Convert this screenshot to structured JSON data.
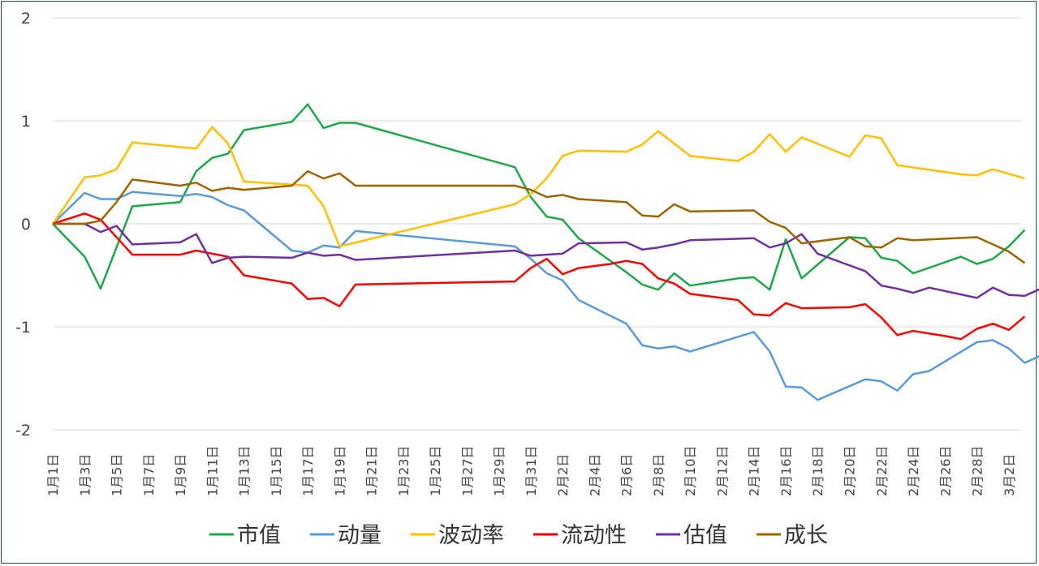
{
  "chart_data": {
    "type": "line",
    "ylim": [
      -2,
      2
    ],
    "yticks": [
      "2",
      "1",
      "0",
      "-1",
      "-2"
    ],
    "grid": true,
    "legend_position": "bottom",
    "x": [
      "1月1日",
      "1月2日",
      "1月3日",
      "1月4日",
      "1月5日",
      "1月6日",
      "1月7日",
      "1月8日",
      "1月9日",
      "1月10日",
      "1月11日",
      "1月12日",
      "1月13日",
      "1月14日",
      "1月15日",
      "1月16日",
      "1月17日",
      "1月18日",
      "1月19日",
      "1月20日",
      "1月21日",
      "1月22日",
      "1月23日",
      "1月24日",
      "1月25日",
      "1月26日",
      "1月27日",
      "1月28日",
      "1月29日",
      "1月30日",
      "1月31日",
      "2月1日",
      "2月2日",
      "2月3日",
      "2月4日",
      "2月5日",
      "2月6日",
      "2月7日",
      "2月8日",
      "2月9日",
      "2月10日",
      "2月11日",
      "2月12日",
      "2月13日",
      "2月14日",
      "2月15日",
      "2月16日",
      "2月17日",
      "2月18日",
      "2月19日",
      "2月20日",
      "2月21日",
      "2月22日",
      "2月23日",
      "2月24日",
      "2月25日",
      "2月26日",
      "2月27日",
      "2月28日",
      "3月1日",
      "3月2日",
      "3月3日"
    ],
    "x_tick_labels": [
      "1月1日",
      "1月3日",
      "1月5日",
      "1月7日",
      "1月9日",
      "1月11日",
      "1月13日",
      "1月15日",
      "1月17日",
      "1月19日",
      "1月21日",
      "1月23日",
      "1月25日",
      "1月27日",
      "1月29日",
      "1月31日",
      "2月2日",
      "2月4日",
      "2月6日",
      "2月8日",
      "2月10日",
      "2月12日",
      "2月14日",
      "2月16日",
      "2月18日",
      "2月20日",
      "2月22日",
      "2月24日",
      "2月26日",
      "2月28日",
      "3月2日"
    ],
    "series": [
      {
        "name": "市值",
        "color": "#1fa64a",
        "points": [
          [
            "1月1日",
            0.0
          ],
          [
            "1月3日",
            -0.32
          ],
          [
            "1月4日",
            -0.63
          ],
          [
            "1月6日",
            0.17
          ],
          [
            "1月9日",
            0.21
          ],
          [
            "1月10日",
            0.51
          ],
          [
            "1月11日",
            0.64
          ],
          [
            "1月12日",
            0.68
          ],
          [
            "1月13日",
            0.91
          ],
          [
            "1月16日",
            0.99
          ],
          [
            "1月17日",
            1.16
          ],
          [
            "1月18日",
            0.93
          ],
          [
            "1月19日",
            0.98
          ],
          [
            "1月20日",
            0.98
          ],
          [
            "1月30日",
            0.55
          ],
          [
            "1月31日",
            0.26
          ],
          [
            "2月1日",
            0.07
          ],
          [
            "2月2日",
            0.04
          ],
          [
            "2月3日",
            -0.14
          ],
          [
            "2月6日",
            -0.47
          ],
          [
            "2月7日",
            -0.59
          ],
          [
            "2月8日",
            -0.64
          ],
          [
            "2月9日",
            -0.48
          ],
          [
            "2月10日",
            -0.6
          ],
          [
            "2月13日",
            -0.53
          ],
          [
            "2月14日",
            -0.52
          ],
          [
            "2月15日",
            -0.64
          ],
          [
            "2月16日",
            -0.15
          ],
          [
            "2月17日",
            -0.53
          ],
          [
            "2月20日",
            -0.13
          ],
          [
            "2月21日",
            -0.14
          ],
          [
            "2月22日",
            -0.33
          ],
          [
            "2月23日",
            -0.36
          ],
          [
            "2月24日",
            -0.48
          ],
          [
            "2月27日",
            -0.32
          ],
          [
            "2月28日",
            -0.39
          ],
          [
            "3月1日",
            -0.34
          ],
          [
            "3月2日",
            -0.22
          ],
          [
            "3月3日",
            -0.06
          ]
        ]
      },
      {
        "name": "动量",
        "color": "#5b9bd5",
        "points": [
          [
            "1月1日",
            0.0
          ],
          [
            "1月3日",
            0.3
          ],
          [
            "1月4日",
            0.24
          ],
          [
            "1月5日",
            0.24
          ],
          [
            "1月6日",
            0.31
          ],
          [
            "1月9日",
            0.27
          ],
          [
            "1月10日",
            0.29
          ],
          [
            "1月11日",
            0.26
          ],
          [
            "1月12日",
            0.18
          ],
          [
            "1月13日",
            0.13
          ],
          [
            "1月16日",
            -0.26
          ],
          [
            "1月17日",
            -0.28
          ],
          [
            "1月18日",
            -0.21
          ],
          [
            "1月19日",
            -0.23
          ],
          [
            "1月20日",
            -0.07
          ],
          [
            "1月30日",
            -0.22
          ],
          [
            "1月31日",
            -0.34
          ],
          [
            "2月1日",
            -0.48
          ],
          [
            "2月2日",
            -0.55
          ],
          [
            "2月3日",
            -0.74
          ],
          [
            "2月6日",
            -0.97
          ],
          [
            "2月7日",
            -1.18
          ],
          [
            "2月8日",
            -1.21
          ],
          [
            "2月9日",
            -1.19
          ],
          [
            "2月10日",
            -1.24
          ],
          [
            "2月14日",
            -1.05
          ],
          [
            "2月15日",
            -1.24
          ],
          [
            "2月16日",
            -1.58
          ],
          [
            "2月17日",
            -1.59
          ],
          [
            "2月18日",
            -1.71
          ],
          [
            "2月21日",
            -1.51
          ],
          [
            "2月22日",
            -1.53
          ],
          [
            "2月23日",
            -1.62
          ],
          [
            "2月24日",
            -1.46
          ],
          [
            "2月25日",
            -1.43
          ],
          [
            "2月28日",
            -1.15
          ],
          [
            "3月1日",
            -1.13
          ],
          [
            "3月2日",
            -1.21
          ],
          [
            "3月3日",
            -1.35
          ],
          [
            "3月4日",
            -1.28
          ]
        ]
      },
      {
        "name": "波动率",
        "color": "#ffc000",
        "points": [
          [
            "1月1日",
            0.0
          ],
          [
            "1月3日",
            0.45
          ],
          [
            "1月4日",
            0.47
          ],
          [
            "1月5日",
            0.53
          ],
          [
            "1月6日",
            0.79
          ],
          [
            "1月10日",
            0.73
          ],
          [
            "1月11日",
            0.94
          ],
          [
            "1月12日",
            0.78
          ],
          [
            "1月13日",
            0.41
          ],
          [
            "1月17日",
            0.37
          ],
          [
            "1月18日",
            0.17
          ],
          [
            "1月19日",
            -0.22
          ],
          [
            "1月30日",
            0.19
          ],
          [
            "1月31日",
            0.29
          ],
          [
            "2月1日",
            0.44
          ],
          [
            "2月2日",
            0.66
          ],
          [
            "2月3日",
            0.71
          ],
          [
            "2月6日",
            0.7
          ],
          [
            "2月7日",
            0.77
          ],
          [
            "2月8日",
            0.9
          ],
          [
            "2月10日",
            0.66
          ],
          [
            "2月13日",
            0.61
          ],
          [
            "2月14日",
            0.7
          ],
          [
            "2月15日",
            0.87
          ],
          [
            "2月16日",
            0.7
          ],
          [
            "2月17日",
            0.84
          ],
          [
            "2月20日",
            0.65
          ],
          [
            "2月21日",
            0.86
          ],
          [
            "2月22日",
            0.83
          ],
          [
            "2月23日",
            0.57
          ],
          [
            "2月27日",
            0.48
          ],
          [
            "2月28日",
            0.47
          ],
          [
            "3月1日",
            0.53
          ],
          [
            "3月3日",
            0.44
          ]
        ]
      },
      {
        "name": "流动性",
        "color": "#ff0000",
        "points": [
          [
            "1月1日",
            0.0
          ],
          [
            "1月3日",
            0.1
          ],
          [
            "1月4日",
            0.04
          ],
          [
            "1月6日",
            -0.3
          ],
          [
            "1月9日",
            -0.3
          ],
          [
            "1月10日",
            -0.26
          ],
          [
            "1月12日",
            -0.32
          ],
          [
            "1月13日",
            -0.5
          ],
          [
            "1月16日",
            -0.58
          ],
          [
            "1月17日",
            -0.73
          ],
          [
            "1月18日",
            -0.72
          ],
          [
            "1月19日",
            -0.8
          ],
          [
            "1月20日",
            -0.59
          ],
          [
            "1月30日",
            -0.56
          ],
          [
            "1月31日",
            -0.43
          ],
          [
            "2月1日",
            -0.34
          ],
          [
            "2月2日",
            -0.49
          ],
          [
            "2月3日",
            -0.43
          ],
          [
            "2月5日",
            -0.39
          ],
          [
            "2月6日",
            -0.36
          ],
          [
            "2月7日",
            -0.39
          ],
          [
            "2月8日",
            -0.53
          ],
          [
            "2月9日",
            -0.58
          ],
          [
            "2月10日",
            -0.68
          ],
          [
            "2月13日",
            -0.74
          ],
          [
            "2月14日",
            -0.88
          ],
          [
            "2月15日",
            -0.89
          ],
          [
            "2月16日",
            -0.77
          ],
          [
            "2月17日",
            -0.82
          ],
          [
            "2月20日",
            -0.81
          ],
          [
            "2月21日",
            -0.78
          ],
          [
            "2月22日",
            -0.91
          ],
          [
            "2月23日",
            -1.08
          ],
          [
            "2月24日",
            -1.04
          ],
          [
            "2月26日",
            -1.09
          ],
          [
            "2月27日",
            -1.12
          ],
          [
            "2月28日",
            -1.02
          ],
          [
            "3月1日",
            -0.97
          ],
          [
            "3月2日",
            -1.03
          ],
          [
            "3月3日",
            -0.9
          ]
        ]
      },
      {
        "name": "估值",
        "color": "#7030a0",
        "points": [
          [
            "1月1日",
            0.0
          ],
          [
            "1月3日",
            0.0
          ],
          [
            "1月4日",
            -0.08
          ],
          [
            "1月5日",
            -0.02
          ],
          [
            "1月6日",
            -0.2
          ],
          [
            "1月9日",
            -0.18
          ],
          [
            "1月10日",
            -0.1
          ],
          [
            "1月11日",
            -0.38
          ],
          [
            "1月12日",
            -0.33
          ],
          [
            "1月13日",
            -0.32
          ],
          [
            "1月16日",
            -0.33
          ],
          [
            "1月17日",
            -0.28
          ],
          [
            "1月18日",
            -0.31
          ],
          [
            "1月19日",
            -0.3
          ],
          [
            "1月20日",
            -0.35
          ],
          [
            "1月30日",
            -0.26
          ],
          [
            "1月31日",
            -0.31
          ],
          [
            "2月2日",
            -0.29
          ],
          [
            "2月3日",
            -0.19
          ],
          [
            "2月6日",
            -0.18
          ],
          [
            "2月7日",
            -0.25
          ],
          [
            "2月8日",
            -0.23
          ],
          [
            "2月9日",
            -0.2
          ],
          [
            "2月10日",
            -0.16
          ],
          [
            "2月14日",
            -0.14
          ],
          [
            "2月15日",
            -0.23
          ],
          [
            "2月16日",
            -0.19
          ],
          [
            "2月17日",
            -0.1
          ],
          [
            "2月18日",
            -0.29
          ],
          [
            "2月21日",
            -0.46
          ],
          [
            "2月22日",
            -0.6
          ],
          [
            "2月23日",
            -0.63
          ],
          [
            "2月24日",
            -0.67
          ],
          [
            "2月25日",
            -0.62
          ],
          [
            "2月28日",
            -0.72
          ],
          [
            "3月1日",
            -0.62
          ],
          [
            "3月2日",
            -0.69
          ],
          [
            "3月3日",
            -0.7
          ],
          [
            "3月4日",
            -0.63
          ]
        ]
      },
      {
        "name": "成长",
        "color": "#9c6500",
        "points": [
          [
            "1月1日",
            0.0
          ],
          [
            "1月3日",
            0.0
          ],
          [
            "1月4日",
            0.03
          ],
          [
            "1月5日",
            0.21
          ],
          [
            "1月6日",
            0.43
          ],
          [
            "1月9日",
            0.37
          ],
          [
            "1月10日",
            0.4
          ],
          [
            "1月11日",
            0.32
          ],
          [
            "1月12日",
            0.35
          ],
          [
            "1月13日",
            0.33
          ],
          [
            "1月16日",
            0.37
          ],
          [
            "1月17日",
            0.51
          ],
          [
            "1月18日",
            0.44
          ],
          [
            "1月19日",
            0.49
          ],
          [
            "1月20日",
            0.37
          ],
          [
            "1月30日",
            0.37
          ],
          [
            "1月31日",
            0.33
          ],
          [
            "2月1日",
            0.26
          ],
          [
            "2月2日",
            0.28
          ],
          [
            "2月3日",
            0.24
          ],
          [
            "2月6日",
            0.21
          ],
          [
            "2月7日",
            0.08
          ],
          [
            "2月8日",
            0.07
          ],
          [
            "2月9日",
            0.19
          ],
          [
            "2月10日",
            0.12
          ],
          [
            "2月14日",
            0.13
          ],
          [
            "2月15日",
            0.02
          ],
          [
            "2月16日",
            -0.04
          ],
          [
            "2月17日",
            -0.19
          ],
          [
            "2月20日",
            -0.13
          ],
          [
            "2月21日",
            -0.22
          ],
          [
            "2月22日",
            -0.23
          ],
          [
            "2月23日",
            -0.14
          ],
          [
            "2月24日",
            -0.16
          ],
          [
            "2月28日",
            -0.13
          ],
          [
            "3月1日",
            -0.2
          ],
          [
            "3月2日",
            -0.27
          ],
          [
            "3月3日",
            -0.38
          ]
        ]
      }
    ]
  }
}
